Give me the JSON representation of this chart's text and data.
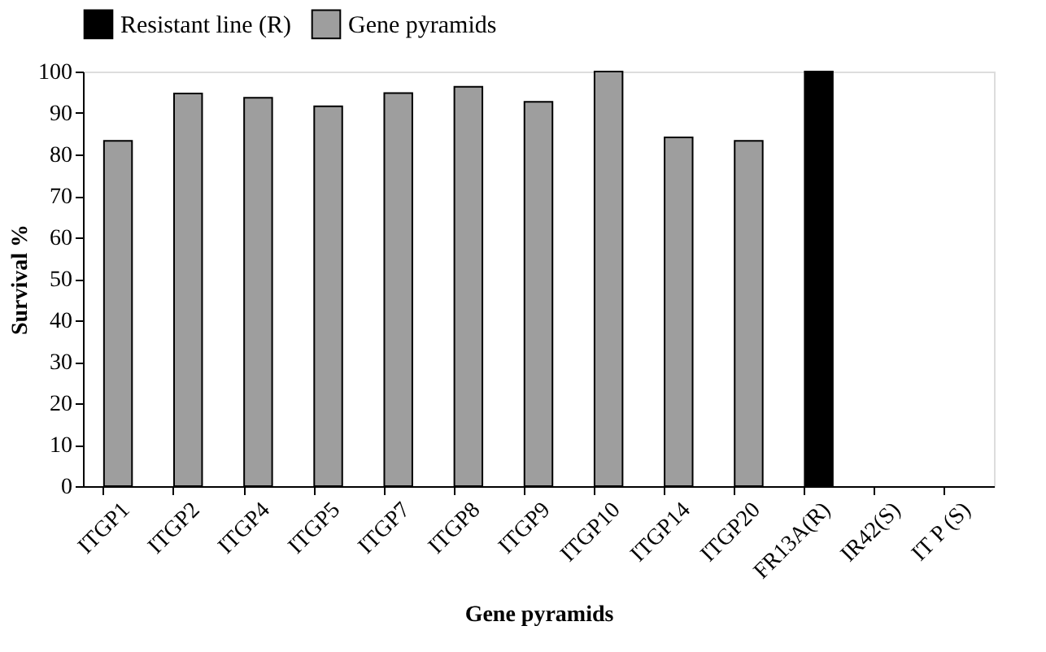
{
  "chart_data": {
    "type": "bar",
    "xlabel": "Gene pyramids",
    "ylabel": "Survival %",
    "categories": [
      "ITGP1",
      "ITGP2",
      "ITGP4",
      "ITGP5",
      "ITGP7",
      "ITGP8",
      "ITGP9",
      "ITGP10",
      "ITGP14",
      "ITGP20",
      "FR13A(R)",
      "IR42(S)",
      "IT P (S)"
    ],
    "series": [
      {
        "name": "Resistant line (R)",
        "color": "#000000",
        "values": [
          null,
          null,
          null,
          null,
          null,
          null,
          null,
          null,
          null,
          null,
          100,
          null,
          null
        ]
      },
      {
        "name": "Gene pyramids",
        "color": "#9e9e9e",
        "values": [
          83.3,
          94.7,
          93.7,
          91.6,
          94.8,
          96.3,
          92.7,
          100,
          84.1,
          83.3,
          null,
          null,
          null
        ]
      }
    ],
    "ylim": [
      0,
      100
    ],
    "yticks": [
      0,
      10,
      20,
      30,
      40,
      50,
      60,
      70,
      80,
      90,
      100
    ],
    "grid": false,
    "legend": "top"
  }
}
